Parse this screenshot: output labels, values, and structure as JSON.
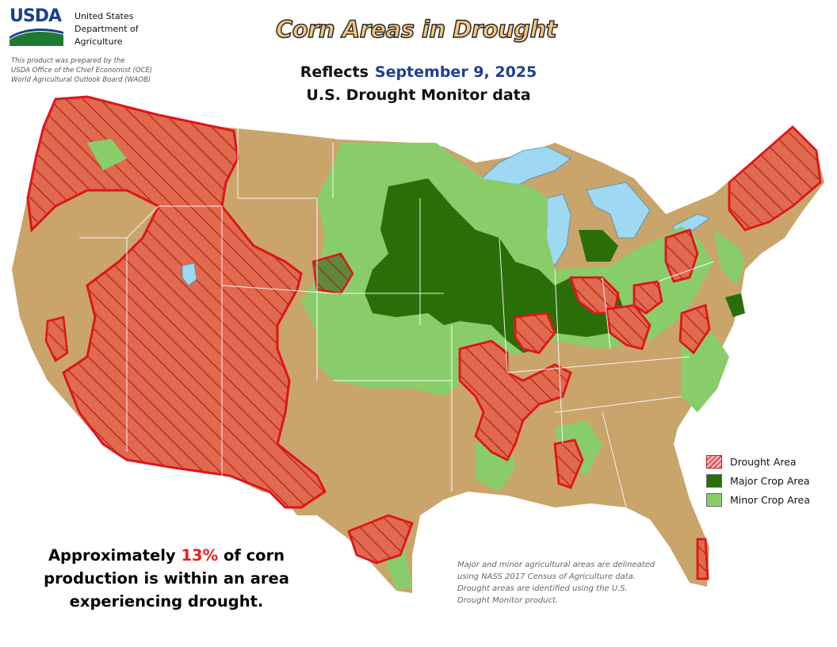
{
  "header": {
    "agency_abbr": "USDA",
    "agency_lines": [
      "United States",
      "Department of",
      "Agriculture"
    ],
    "credit_lines": [
      "This product was prepared by the",
      "USDA Office of the Chief Economist (OCE)",
      "World Agricultural Outlook Board (WAOB)"
    ]
  },
  "title": "Corn Areas in Drought",
  "reflects_label": "Reflects",
  "date": "September 9, 2025",
  "subtitle": "U.S. Drought Monitor data",
  "legend": {
    "items": [
      {
        "label": "Drought Area",
        "color": "#e0393e"
      },
      {
        "label": "Major Crop Area",
        "color": "#2a6e08"
      },
      {
        "label": "Minor Crop Area",
        "color": "#89cd6a"
      }
    ]
  },
  "summary": {
    "prefix": "Approximately",
    "percent": "13%",
    "suffix_line1": "of corn",
    "line2": "production is within an area",
    "line3": "experiencing drought."
  },
  "footnote": "Major and minor agricultural areas are delineated using NASS 2017 Census of Agriculture data.  Drought areas are identified using the U.S. Drought Monitor product.",
  "colors": {
    "land": "#c9a46b",
    "water": "#9ed8f2",
    "drought_outline": "#e0141a",
    "major_crop": "#2a6e08",
    "minor_crop": "#89cd6a",
    "state_border": "#ffffff"
  }
}
